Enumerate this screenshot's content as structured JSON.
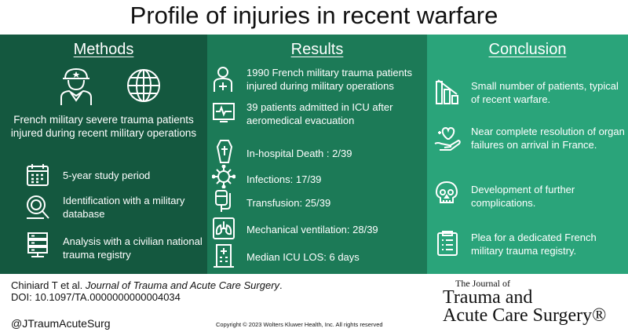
{
  "title": "Profile of injuries in recent warfare",
  "methods": {
    "heading": "Methods",
    "icons": [
      "soldier-icon",
      "globe-icon"
    ],
    "summary": "French military severe trauma patients injured during recent military operations",
    "items": [
      {
        "icon": "calendar-icon",
        "text": "5-year study period"
      },
      {
        "icon": "database-search-icon",
        "text": "Identification with a military database"
      },
      {
        "icon": "server-registry-icon",
        "text": "Analysis with a civilian national trauma registry"
      }
    ]
  },
  "results": {
    "heading": "Results",
    "items": [
      {
        "icon": "patient-icon",
        "text": "1990 French military trauma patients injured during military operations"
      },
      {
        "icon": "icu-monitor-icon",
        "text": "39 patients admitted in ICU after aeromedical evacuation"
      },
      {
        "icon": "coffin-icon",
        "text": "In-hospital Death : 2/39"
      },
      {
        "icon": "virus-icon",
        "text": "Infections: 17/39"
      },
      {
        "icon": "transfusion-bag-icon",
        "text": "Transfusion: 25/39"
      },
      {
        "icon": "lungs-ventilation-icon",
        "text": "Mechanical ventilation: 28/39"
      },
      {
        "icon": "hospital-icon",
        "text": "Median ICU LOS: 6 days"
      }
    ]
  },
  "conclusion": {
    "heading": "Conclusion",
    "items": [
      {
        "icon": "declining-bars-icon",
        "text": "Small number of patients, typical of recent warfare."
      },
      {
        "icon": "heart-hand-icon",
        "text": "Near complete resolution of organ failures on arrival in France."
      },
      {
        "icon": "skull-icon",
        "text": "Development of further complications."
      },
      {
        "icon": "clipboard-icon",
        "text": "Plea for a dedicated French military trauma registry."
      }
    ]
  },
  "footer": {
    "citation_authors": "Chiniard T et al. ",
    "citation_journal": "Journal of Trauma and Acute Care Surgery",
    "citation_end": ".",
    "doi": "DOI: 10.1097/TA.0000000000004034",
    "handle": "@JTraumAcuteSurg",
    "copyright": "Copyright © 2023  Wolters Kluwer Health, Inc. All rights reserved",
    "journal_logo": {
      "line1": "The Journal of",
      "line2": "Trauma and",
      "line3": "Acute Care Surgery®"
    }
  },
  "colors": {
    "methods_bg": "#14583f",
    "results_bg": "#1c7a57",
    "conclusion_bg": "#2aa47a",
    "text": "#ffffff"
  }
}
